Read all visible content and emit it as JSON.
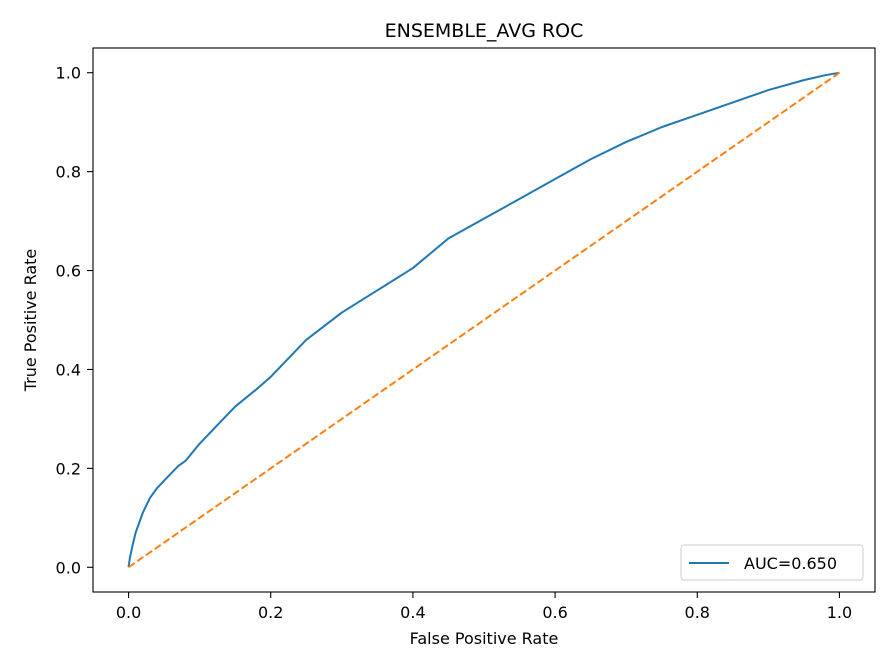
{
  "chart_data": {
    "type": "line",
    "title": "ENSEMBLE_AVG ROC",
    "xlabel": "False Positive Rate",
    "ylabel": "True Positive Rate",
    "xlim": [
      -0.05,
      1.05
    ],
    "ylim": [
      -0.05,
      1.05
    ],
    "xticks": [
      "0.0",
      "0.2",
      "0.4",
      "0.6",
      "0.8",
      "1.0"
    ],
    "yticks": [
      "0.0",
      "0.2",
      "0.4",
      "0.6",
      "0.8",
      "1.0"
    ],
    "grid": false,
    "legend_position": "lower-right",
    "series": [
      {
        "name": "AUC=0.650",
        "color": "#1f77b4",
        "style": "solid",
        "x": [
          0.0,
          0.002,
          0.005,
          0.01,
          0.015,
          0.02,
          0.03,
          0.04,
          0.05,
          0.06,
          0.07,
          0.08,
          0.1,
          0.12,
          0.15,
          0.18,
          0.2,
          0.25,
          0.3,
          0.35,
          0.4,
          0.45,
          0.5,
          0.55,
          0.6,
          0.65,
          0.7,
          0.75,
          0.8,
          0.85,
          0.9,
          0.95,
          0.98,
          1.0
        ],
        "y": [
          0.0,
          0.02,
          0.04,
          0.07,
          0.09,
          0.11,
          0.14,
          0.16,
          0.175,
          0.19,
          0.205,
          0.215,
          0.25,
          0.28,
          0.325,
          0.36,
          0.385,
          0.46,
          0.515,
          0.56,
          0.605,
          0.665,
          0.705,
          0.745,
          0.785,
          0.825,
          0.86,
          0.89,
          0.915,
          0.94,
          0.965,
          0.985,
          0.995,
          1.0
        ]
      },
      {
        "name": "",
        "color": "#ff7f0e",
        "style": "dashed",
        "x": [
          0.0,
          1.0
        ],
        "y": [
          0.0,
          1.0
        ]
      }
    ],
    "legend": {
      "label": "AUC=0.650"
    }
  }
}
